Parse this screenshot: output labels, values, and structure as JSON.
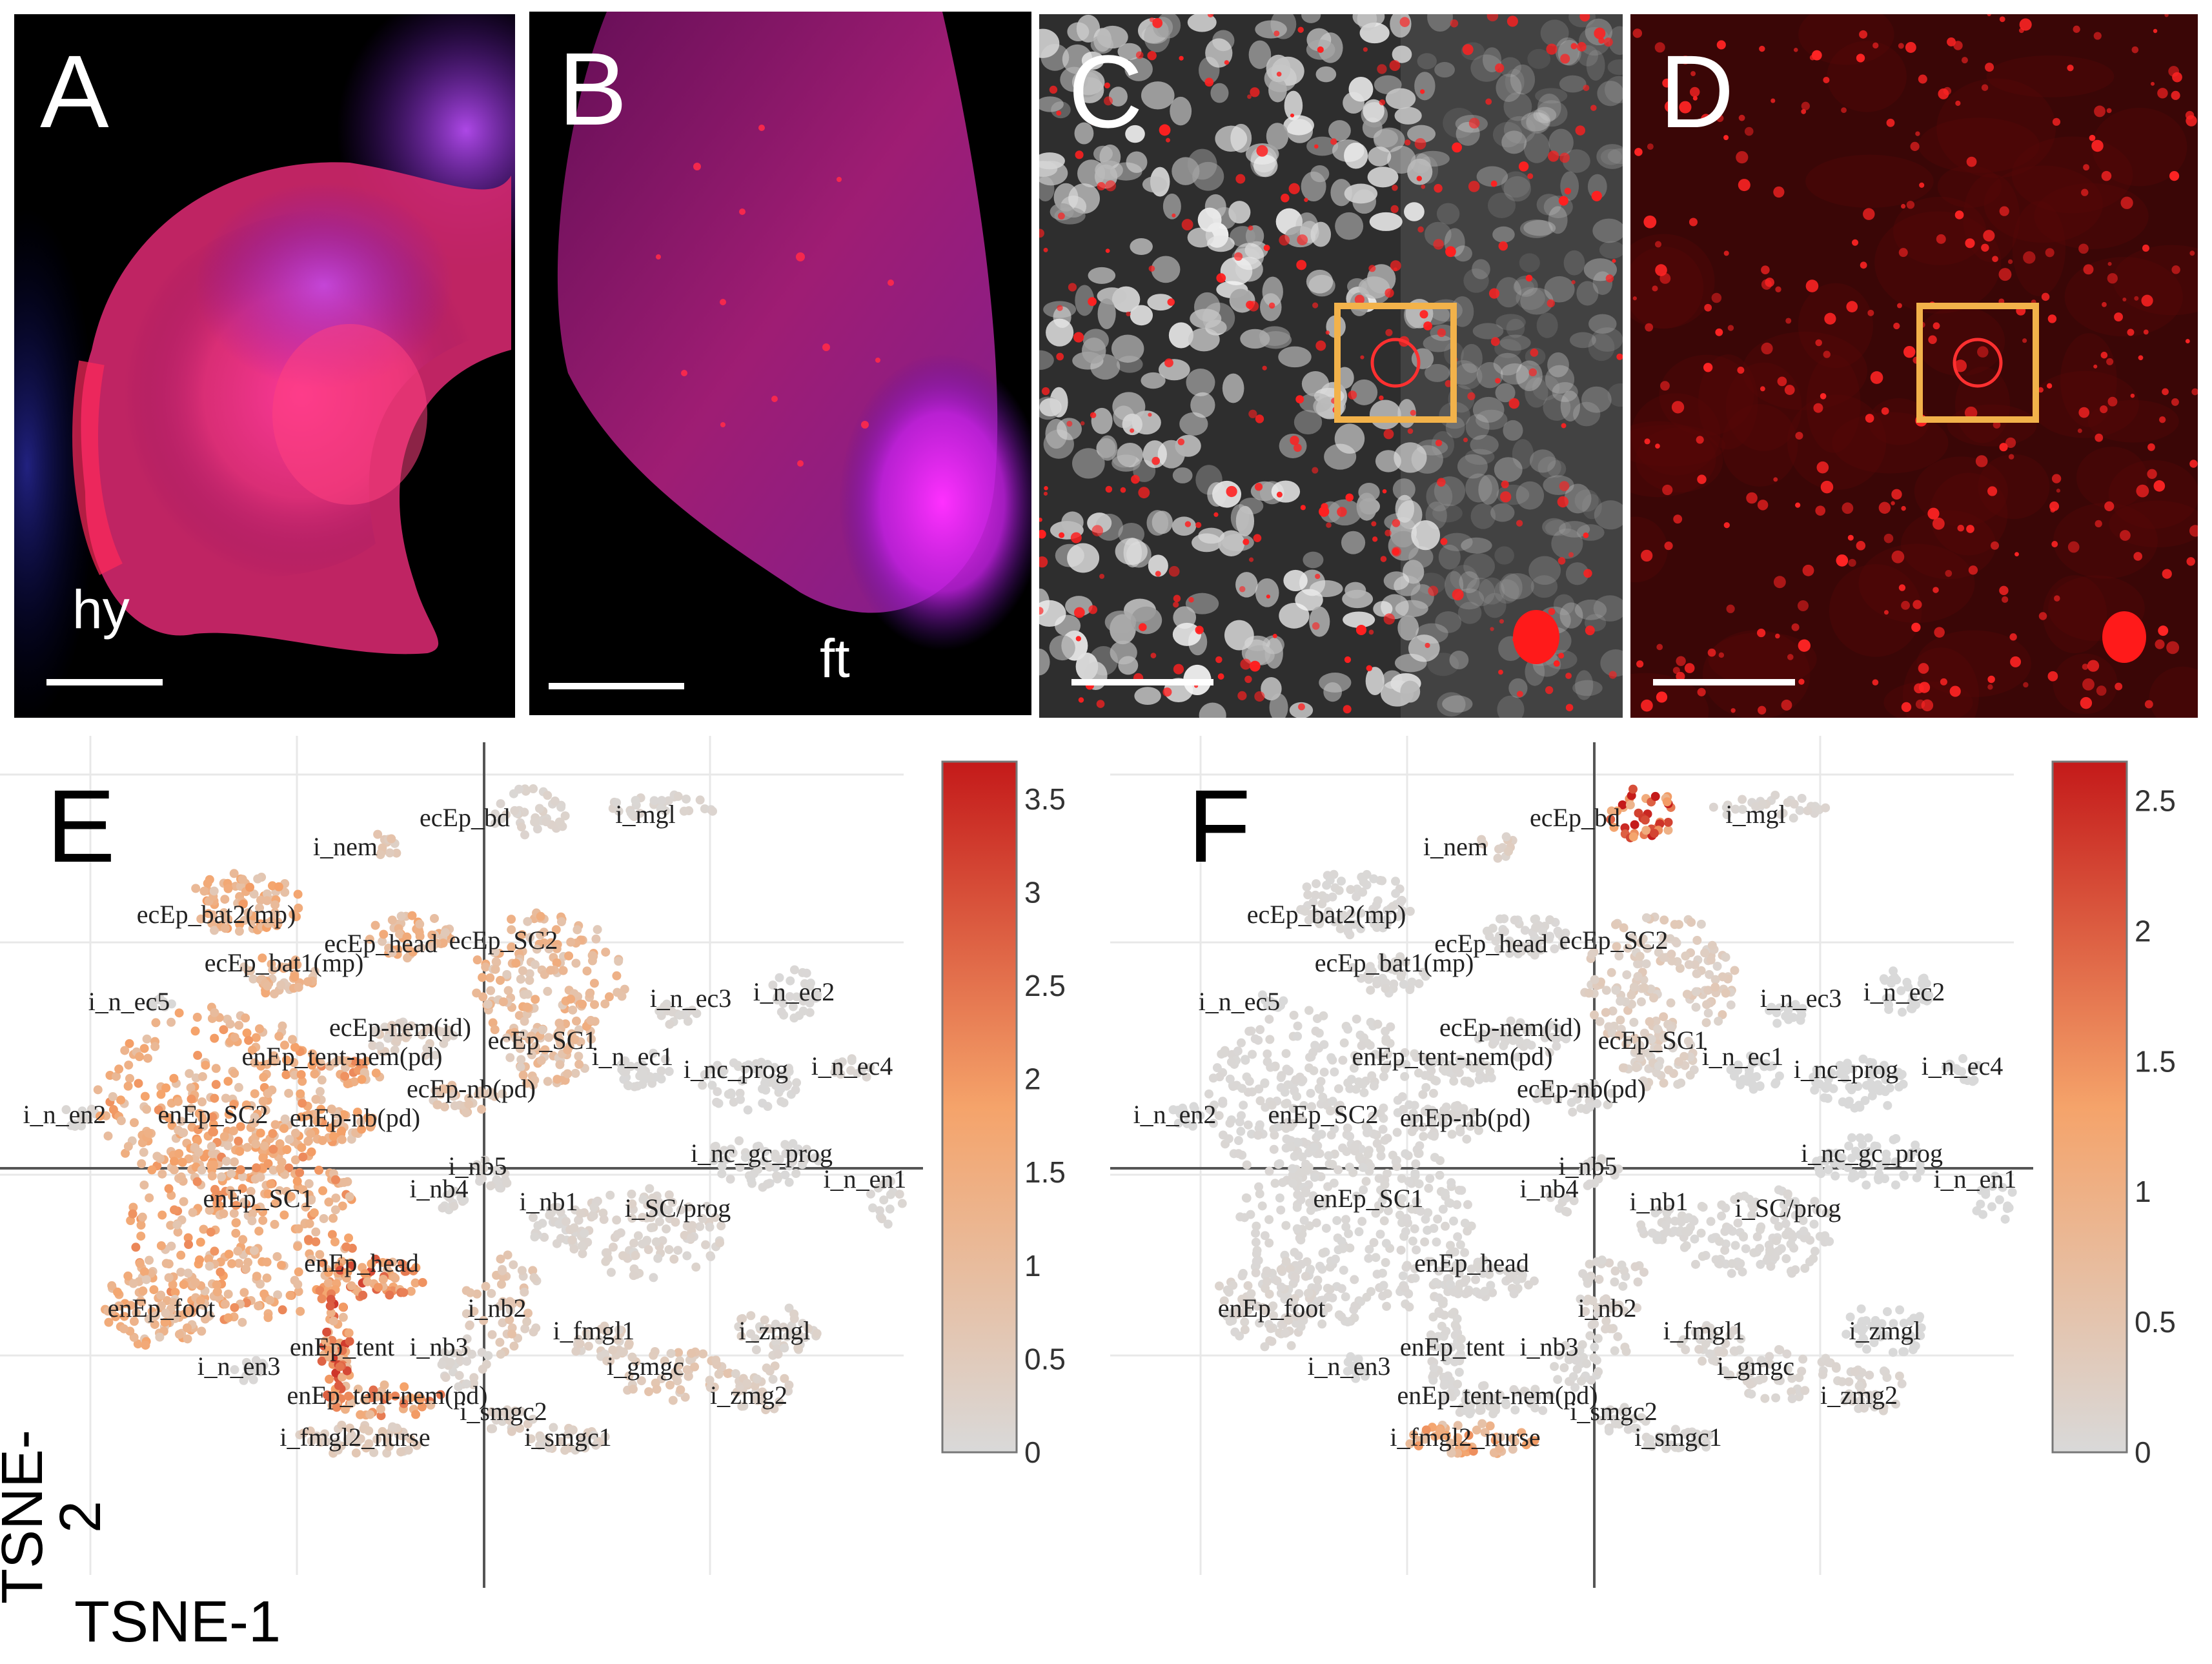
{
  "panels": {
    "A": {
      "label": "A",
      "annotation": "hy"
    },
    "B": {
      "label": "B",
      "annotation": "ft"
    },
    "C": {
      "label": "C"
    },
    "D": {
      "label": "D"
    },
    "E": {
      "label": "E"
    },
    "F": {
      "label": "F"
    }
  },
  "axes": {
    "x_title": "TSNE-1",
    "y_title": "TSNE-2"
  },
  "colorbars": {
    "E": {
      "max": 3.7,
      "ticks": [
        "3.5",
        "3",
        "2.5",
        "2",
        "1.5",
        "1",
        "0.5",
        "0"
      ]
    },
    "F": {
      "max": 2.65,
      "ticks": [
        "2.5",
        "2",
        "1.5",
        "1",
        "0.5",
        "0"
      ]
    }
  },
  "colors": {
    "low": "#d9d9d9",
    "mid": "#f5a36a",
    "high": "#c41a1a",
    "box": "#f2b24a"
  },
  "chart_data": [
    {
      "type": "scatter",
      "panel": "E",
      "xlabel": "TSNE-1",
      "ylabel": "TSNE-2",
      "colorbar_range": [
        0,
        3.7
      ],
      "cluster_labels": [
        "ecEp_bd",
        "i_mgl",
        "i_nem",
        "ecEp_bat2(mp)",
        "ecEp_head",
        "ecEp_SC2",
        "ecEp_bat1(mp)",
        "i_n_ec5",
        "i_n_ec3",
        "i_n_ec2",
        "ecEp-nem(id)",
        "ecEp_SC1",
        "enEp_tent-nem(pd)",
        "i_n_ec1",
        "i_n_ec4",
        "i_nc_prog",
        "ecEp-nb(pd)",
        "i_n_en2",
        "enEp_SC2",
        "enEp-nb(pd)",
        "i_nc_gc_prog",
        "i_nb5",
        "i_n_en1",
        "i_nb4",
        "i_nb1",
        "enEp_SC1",
        "i_SC/prog",
        "enEp_head",
        "i_nb2",
        "enEp_foot",
        "i_fmgl1",
        "i_zmgl",
        "enEp_tent",
        "i_nb3",
        "i_gmgc",
        "i_n_en3",
        "enEp_tent-nem(pd)",
        "i_zmg2",
        "i_smgc2",
        "i_fmgl2_nurse",
        "i_smgc1"
      ],
      "cluster_expression": [
        0.2,
        0.15,
        0.6,
        1.4,
        1.3,
        1.1,
        1.2,
        0.05,
        0.1,
        0.05,
        0.4,
        0.9,
        1.6,
        0.05,
        0.1,
        0.05,
        0.7,
        0.1,
        1.5,
        1.4,
        0.05,
        0.1,
        0.1,
        0.1,
        0.1,
        1.6,
        0.2,
        2.3,
        0.6,
        1.3,
        0.4,
        0.2,
        2.4,
        0.2,
        0.6,
        0.05,
        1.9,
        0.3,
        0.3,
        0.5,
        0.3
      ]
    },
    {
      "type": "scatter",
      "panel": "F",
      "xlabel": "TSNE-1",
      "ylabel": "TSNE-2",
      "colorbar_range": [
        0,
        2.65
      ],
      "cluster_labels": [
        "ecEp_bd",
        "i_mgl",
        "i_nem",
        "ecEp_bat2(mp)",
        "ecEp_head",
        "ecEp_SC2",
        "ecEp_bat1(mp)",
        "i_n_ec5",
        "i_n_ec3",
        "i_n_ec2",
        "ecEp-nem(id)",
        "ecEp_SC1",
        "enEp_tent-nem(pd)",
        "i_n_ec1",
        "i_n_ec4",
        "i_nc_prog",
        "ecEp-nb(pd)",
        "i_n_en2",
        "enEp_SC2",
        "enEp-nb(pd)",
        "i_nc_gc_prog",
        "i_nb5",
        "i_n_en1",
        "i_nb4",
        "i_nb1",
        "enEp_SC1",
        "i_SC/prog",
        "enEp_head",
        "i_nb2",
        "enEp_foot",
        "i_fmgl1",
        "i_zmgl",
        "enEp_tent",
        "i_nb3",
        "i_gmgc",
        "i_n_en3",
        "enEp_tent-nem(pd)",
        "i_zmg2",
        "i_smgc2",
        "i_fmgl2_nurse",
        "i_smgc1"
      ],
      "cluster_expression": [
        2.3,
        0.1,
        0.3,
        0.05,
        0.05,
        0.3,
        0.05,
        0.0,
        0.0,
        0.0,
        0.05,
        0.2,
        0.05,
        0.0,
        0.0,
        0.0,
        0.05,
        0.0,
        0.05,
        0.05,
        0.0,
        0.05,
        0.0,
        0.05,
        0.05,
        0.05,
        0.05,
        0.05,
        0.1,
        0.1,
        0.1,
        0.0,
        0.05,
        0.05,
        0.1,
        0.0,
        0.05,
        0.1,
        0.05,
        1.1,
        0.05
      ]
    }
  ]
}
